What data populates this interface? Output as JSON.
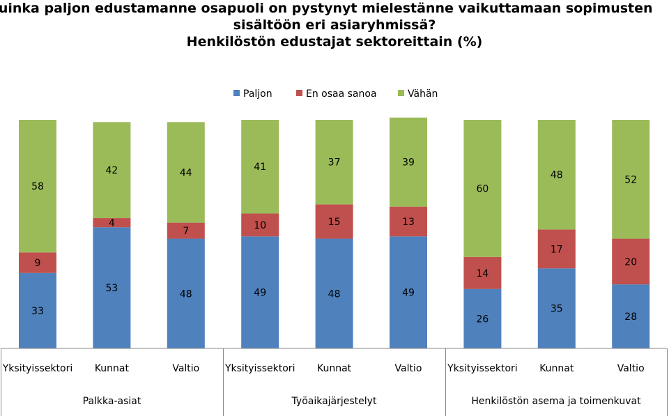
{
  "chart_data": {
    "type": "bar",
    "stacked": true,
    "title_lines": [
      "Kuinka paljon edustamanne osapuoli on pystynyt mielestänne vaikuttamaan sopimusten",
      "sisältöön eri asiaryhmissä?",
      "Henkilöstön edustajat sektoreittain (%)"
    ],
    "legend_position": "top",
    "grid": false,
    "ylim": [
      0,
      100
    ],
    "groups": [
      {
        "name": "Palkka-asiat",
        "categories": [
          "Yksityissektori",
          "Kunnat",
          "Valtio"
        ]
      },
      {
        "name": "Työaikajärjestelyt",
        "categories": [
          "Yksityissektori",
          "Kunnat",
          "Valtio"
        ]
      },
      {
        "name": "Henkilöstön asema ja toimenkuvat",
        "categories": [
          "Yksityissektori",
          "Kunnat",
          "Valtio"
        ]
      }
    ],
    "series": [
      {
        "name": "Paljon",
        "color": "#4F81BD",
        "values": [
          33,
          53,
          48,
          49,
          48,
          49,
          26,
          35,
          28
        ]
      },
      {
        "name": "En osaa sanoa",
        "color": "#C0504D",
        "values": [
          9,
          4,
          7,
          10,
          15,
          13,
          14,
          17,
          20
        ]
      },
      {
        "name": "Vähän",
        "color": "#9BBB59",
        "values": [
          58,
          42,
          44,
          41,
          37,
          39,
          60,
          48,
          52
        ]
      }
    ]
  }
}
